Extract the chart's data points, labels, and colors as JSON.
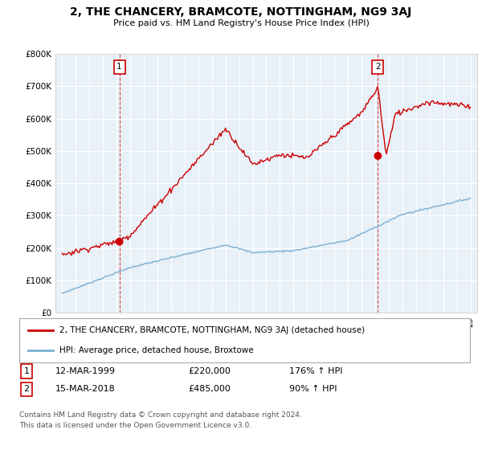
{
  "title": "2, THE CHANCERY, BRAMCOTE, NOTTINGHAM, NG9 3AJ",
  "subtitle": "Price paid vs. HM Land Registry's House Price Index (HPI)",
  "legend_line1": "2, THE CHANCERY, BRAMCOTE, NOTTINGHAM, NG9 3AJ (detached house)",
  "legend_line2": "HPI: Average price, detached house, Broxtowe",
  "footnote1": "Contains HM Land Registry data © Crown copyright and database right 2024.",
  "footnote2": "This data is licensed under the Open Government Licence v3.0.",
  "transaction1_label": "1",
  "transaction1_date": "12-MAR-1999",
  "transaction1_price": "£220,000",
  "transaction1_hpi": "176% ↑ HPI",
  "transaction2_label": "2",
  "transaction2_date": "15-MAR-2018",
  "transaction2_price": "£485,000",
  "transaction2_hpi": "90% ↑ HPI",
  "ylim": [
    0,
    800000
  ],
  "yticks": [
    0,
    100000,
    200000,
    300000,
    400000,
    500000,
    600000,
    700000,
    800000
  ],
  "red_color": "#cc0000",
  "blue_color": "#7ab0d4",
  "chart_bg": "#e8f0f8",
  "marker1_year": 1999.2,
  "marker1_price": 220000,
  "marker2_year": 2018.2,
  "marker2_price": 485000,
  "background_color": "#ffffff",
  "grid_color": "#ffffff"
}
